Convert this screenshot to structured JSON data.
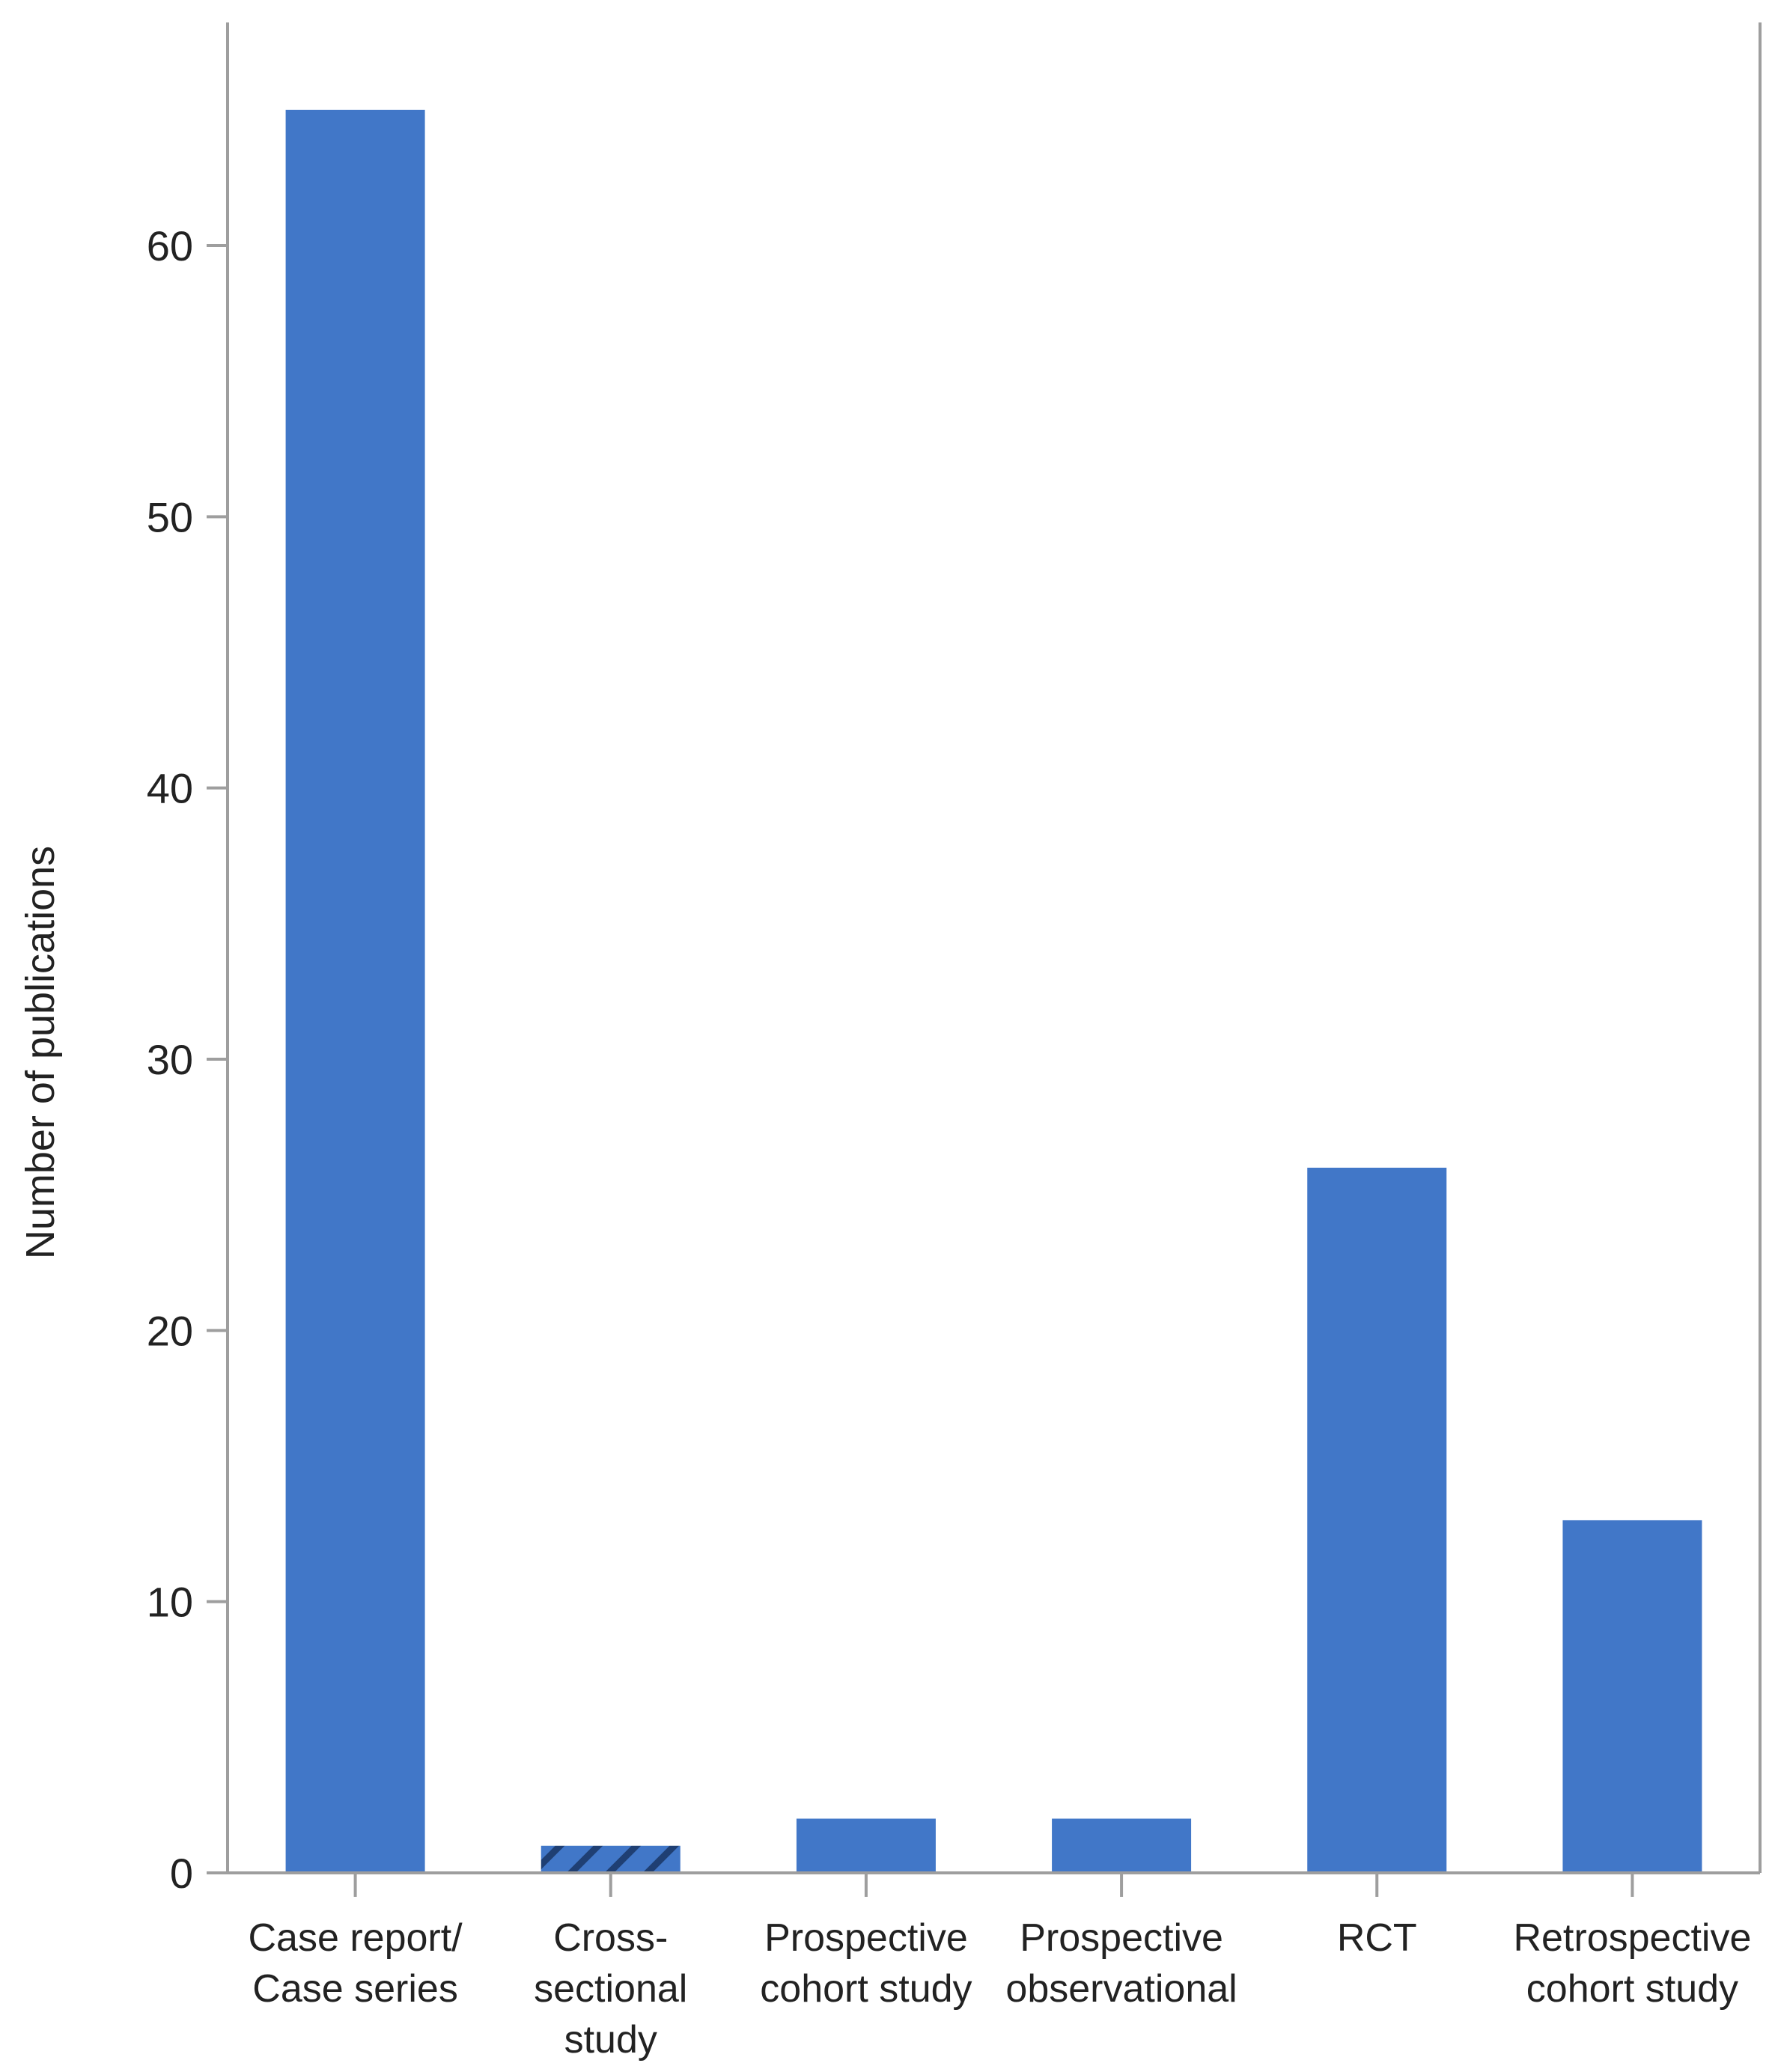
{
  "chart_data": {
    "type": "bar",
    "categories": [
      [
        "Case report/",
        "Case series"
      ],
      [
        "Cross-",
        "sectional",
        "study"
      ],
      [
        "Prospective",
        "cohort study"
      ],
      [
        "Prospective",
        "observational"
      ],
      [
        "RCT"
      ],
      [
        "Retrospective",
        "cohort study"
      ]
    ],
    "values": [
      65,
      1,
      2,
      2,
      26,
      13
    ],
    "hatched": [
      false,
      true,
      false,
      false,
      false,
      false
    ],
    "ylabel": "Number of publications",
    "ylim": [
      0,
      70
    ],
    "yticks": [
      0,
      10,
      20,
      30,
      40,
      50,
      60
    ],
    "grid": false,
    "legend": "none",
    "colors": {
      "bar": "#4177c8",
      "hatch": "#1f3f73",
      "axis": "#9e9e9e"
    }
  }
}
